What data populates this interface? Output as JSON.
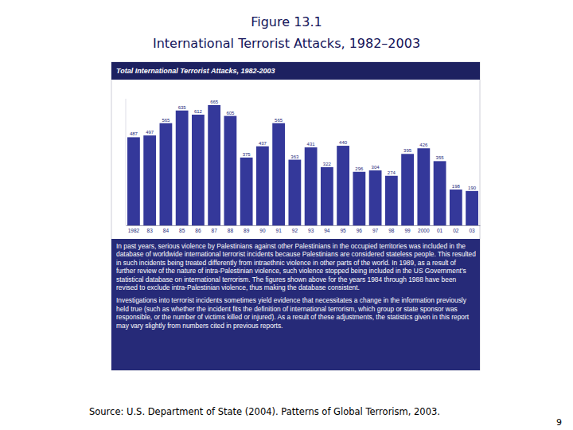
{
  "page": {
    "figure_label": "Figure 13.1",
    "heading": "International Terrorist Attacks, 1982–2003",
    "source": "Source: U.S. Department of State (2004). Patterns of Global Terrorism, 2003.",
    "page_number": "9"
  },
  "chart_data": {
    "type": "bar",
    "title": "Total International Terrorist Attacks, 1982-2003",
    "categories": [
      "1982",
      "83",
      "84",
      "85",
      "86",
      "87",
      "88",
      "89",
      "90",
      "91",
      "92",
      "93",
      "94",
      "95",
      "96",
      "97",
      "98",
      "99",
      "2000",
      "01",
      "02",
      "03"
    ],
    "values": [
      487,
      497,
      565,
      635,
      612,
      665,
      605,
      375,
      437,
      565,
      363,
      431,
      322,
      440,
      296,
      304,
      274,
      395,
      426,
      355,
      198,
      190
    ],
    "color": "#34389a",
    "ylim": [
      0,
      700
    ],
    "data_labels": true,
    "tick_labels": "x",
    "annotations": [
      "In past years, serious violence by Palestinians against other Palestinians in the occupied territories was included in the database of worldwide international terrorist incidents because Palestinians are considered stateless people. This resulted in such incidents being treated differently from intraethnic violence in other parts of the world. In 1989, as a result of further review of the nature of intra-Palestinian violence, such violence stopped being included in the US Government's statistical database on international terrorism. The figures shown above for the years 1984 through 1988 have been revised to exclude intra-Palestinian violence, thus making the database consistent.",
      "Investigations into terrorist incidents sometimes yield evidence that necessitates a change in the information previously held true (such as whether the incident fits the definition of international terrorism, which group or state sponsor was responsible, or the number of victims killed or injured). As a result of these adjustments, the statistics given in this report may vary slightly from numbers cited in previous reports."
    ]
  }
}
